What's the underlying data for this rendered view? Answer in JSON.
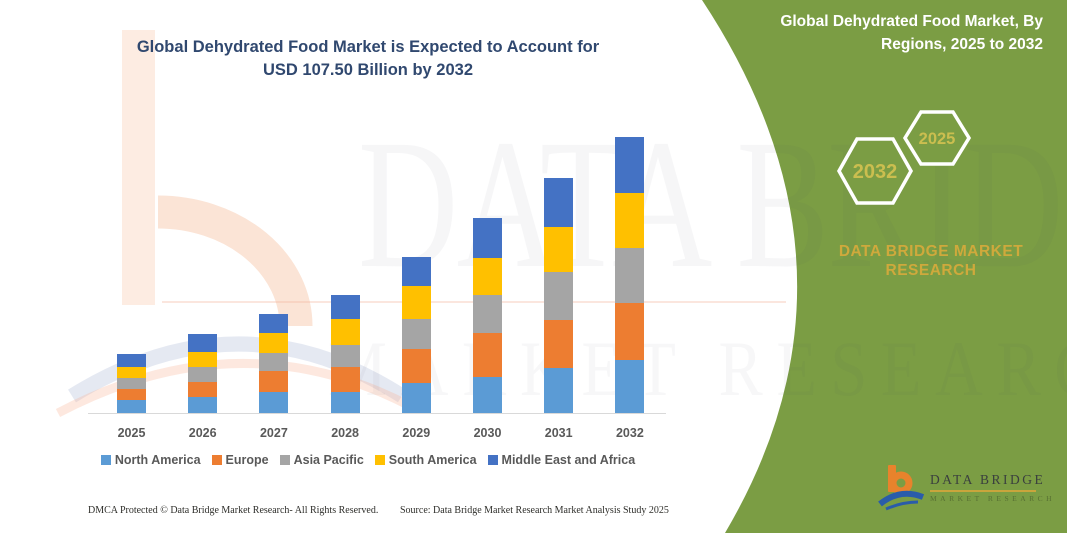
{
  "title": {
    "line1": "Global Dehydrated Food Market is Expected to Account for",
    "line2": "USD 107.50 Billion by 2032"
  },
  "panel": {
    "title": "Global Dehydrated Food Market, By Regions, 2025 to 2032",
    "hexagons": {
      "big": "2032",
      "small": "2025"
    },
    "brand_line1": "DATA BRIDGE MARKET",
    "brand_line2": "RESEARCH",
    "logo": {
      "name": "DATA BRIDGE",
      "sub": "MARKET RESEARCH"
    }
  },
  "watermark": {
    "line1": "DATA BRIDGE",
    "line2": "MARKET RESEARCH"
  },
  "footer": {
    "left": "DMCA Protected © Data Bridge Market Research-  All Rights Reserved.",
    "right": "Source: Data Bridge Market Research  Market Analysis Study 2025"
  },
  "colors": {
    "panel_green": "#7b9d44",
    "title_navy": "#30486f",
    "gold_text": "#cfa93c",
    "hex_year_gold": "#cbbe4f",
    "axis_gray": "#d9d9d9",
    "label_gray": "#595959"
  },
  "chart_data": {
    "type": "bar",
    "stacked": true,
    "title": "Global Dehydrated Food Market is Expected to Account for USD 107.50 Billion by 2032",
    "unit": "USD Billion",
    "categories": [
      "2025",
      "2026",
      "2027",
      "2028",
      "2029",
      "2030",
      "2031",
      "2032"
    ],
    "series": [
      {
        "name": "North America",
        "color": "#5B9BD5",
        "values": [
          5.4,
          6.6,
          8.5,
          8.5,
          12.0,
          14.4,
          17.9,
          21.0
        ]
      },
      {
        "name": "Europe",
        "color": "#ED7D31",
        "values": [
          4.3,
          5.8,
          8.1,
          9.7,
          13.2,
          17.1,
          18.6,
          22.1
        ]
      },
      {
        "name": "Asia Pacific",
        "color": "#A5A5A5",
        "values": [
          4.3,
          5.8,
          7.0,
          8.5,
          11.6,
          14.7,
          18.6,
          21.3
        ]
      },
      {
        "name": "South America",
        "color": "#FFC000",
        "values": [
          4.3,
          5.8,
          7.8,
          10.1,
          12.8,
          14.4,
          17.5,
          21.3
        ]
      },
      {
        "name": "Middle East and Africa",
        "color": "#4472C4",
        "values": [
          5.0,
          7.0,
          7.4,
          9.3,
          11.3,
          15.5,
          19.0,
          21.8
        ]
      }
    ],
    "totals": [
      23.3,
      31.0,
      38.8,
      46.1,
      60.9,
      76.1,
      91.6,
      107.5
    ],
    "ylim": [
      0,
      110
    ],
    "gridlines": false,
    "y_axis_visible": false,
    "x_labels_visible": true,
    "legend_position": "bottom"
  }
}
